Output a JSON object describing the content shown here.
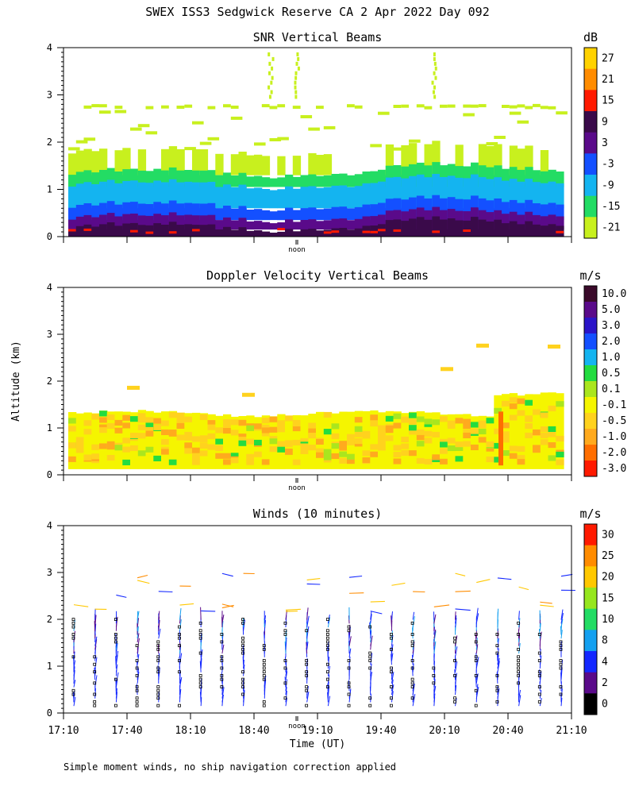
{
  "figure_title": "SWEX ISS3 Sedgwick Reserve CA   2 Apr 2022 Day 092",
  "y_axis_label": "Altitude (km)",
  "x_axis_label": "Time (UT)",
  "footnote": "Simple moment winds, no ship navigation correction applied",
  "noon_label": "noon",
  "time_ticks": [
    "17:10",
    "17:40",
    "18:10",
    "18:40",
    "19:10",
    "19:40",
    "20:10",
    "20:40",
    "21:10"
  ],
  "altitude_ticks": [
    "0",
    "1",
    "2",
    "3",
    "4"
  ],
  "chart_data": [
    {
      "type": "heatmap",
      "title": "SNR Vertical Beams",
      "colorbar_units": "dB",
      "colorbar_labels": [
        "27",
        "21",
        "15",
        "9",
        "3",
        "-3",
        "-9",
        "-15",
        "-21"
      ],
      "colorbar_colors": [
        "#ffd200",
        "#ff8c00",
        "#ff1a00",
        "#3a0a4a",
        "#5a0a8a",
        "#1450ff",
        "#14b4f0",
        "#23dc64",
        "#c8f01e"
      ],
      "xlabel": "Time (UT)",
      "ylabel": "Altitude (km)",
      "xlim": [
        "17:10",
        "21:10"
      ],
      "ylim": [
        0,
        4
      ],
      "layers_km": [
        {
          "from": 0.0,
          "to": 0.15,
          "snr_db": 9
        },
        {
          "from": 0.15,
          "to": 0.35,
          "snr_db": 6
        },
        {
          "from": 0.35,
          "to": 0.6,
          "snr_db": 0
        },
        {
          "from": 0.6,
          "to": 1.0,
          "snr_db": -9
        },
        {
          "from": 1.0,
          "to": 1.3,
          "snr_db": -15
        },
        {
          "from": 1.3,
          "to": 1.8,
          "snr_db": -21
        }
      ],
      "scattered_layer_km": 2.75
    },
    {
      "type": "heatmap",
      "title": "Doppler Velocity Vertical Beams",
      "colorbar_units": "m/s",
      "colorbar_labels": [
        "10.0",
        "5.0",
        "3.0",
        "2.0",
        "1.0",
        "0.5",
        "0.1",
        "-0.1",
        "-0.5",
        "-1.0",
        "-2.0",
        "-3.0"
      ],
      "colorbar_colors": [
        "#3a0a2a",
        "#5a0a8a",
        "#2a14c8",
        "#1450ff",
        "#14b4f0",
        "#23dc40",
        "#aae61e",
        "#f5f500",
        "#ffd21e",
        "#ffaa1e",
        "#ff6e00",
        "#ff1a00"
      ],
      "xlabel": "Time (UT)",
      "ylabel": "Altitude (km)",
      "xlim": [
        "17:10",
        "21:10"
      ],
      "ylim": [
        0,
        4
      ],
      "dominant_velocity_m_s": [
        -0.1,
        -0.5
      ],
      "echo_top_km": 1.3
    },
    {
      "type": "scatter",
      "title": "Winds (10 minutes)",
      "colorbar_units": "m/s",
      "colorbar_labels": [
        "30",
        "25",
        "20",
        "15",
        "10",
        "8",
        "4",
        "2",
        "0"
      ],
      "colorbar_colors": [
        "#ff1a00",
        "#ff8c00",
        "#ffc800",
        "#96e61e",
        "#23dc64",
        "#14a0f0",
        "#1428ff",
        "#5a0a8a",
        "#000000"
      ],
      "xlabel": "Time (UT)",
      "ylabel": "Altitude (km)",
      "xlim": [
        "17:10",
        "21:10"
      ],
      "ylim": [
        0,
        4
      ],
      "profile_interval_min": 10,
      "profile_count": 24,
      "typical_speed_m_s": [
        2,
        8
      ]
    }
  ]
}
